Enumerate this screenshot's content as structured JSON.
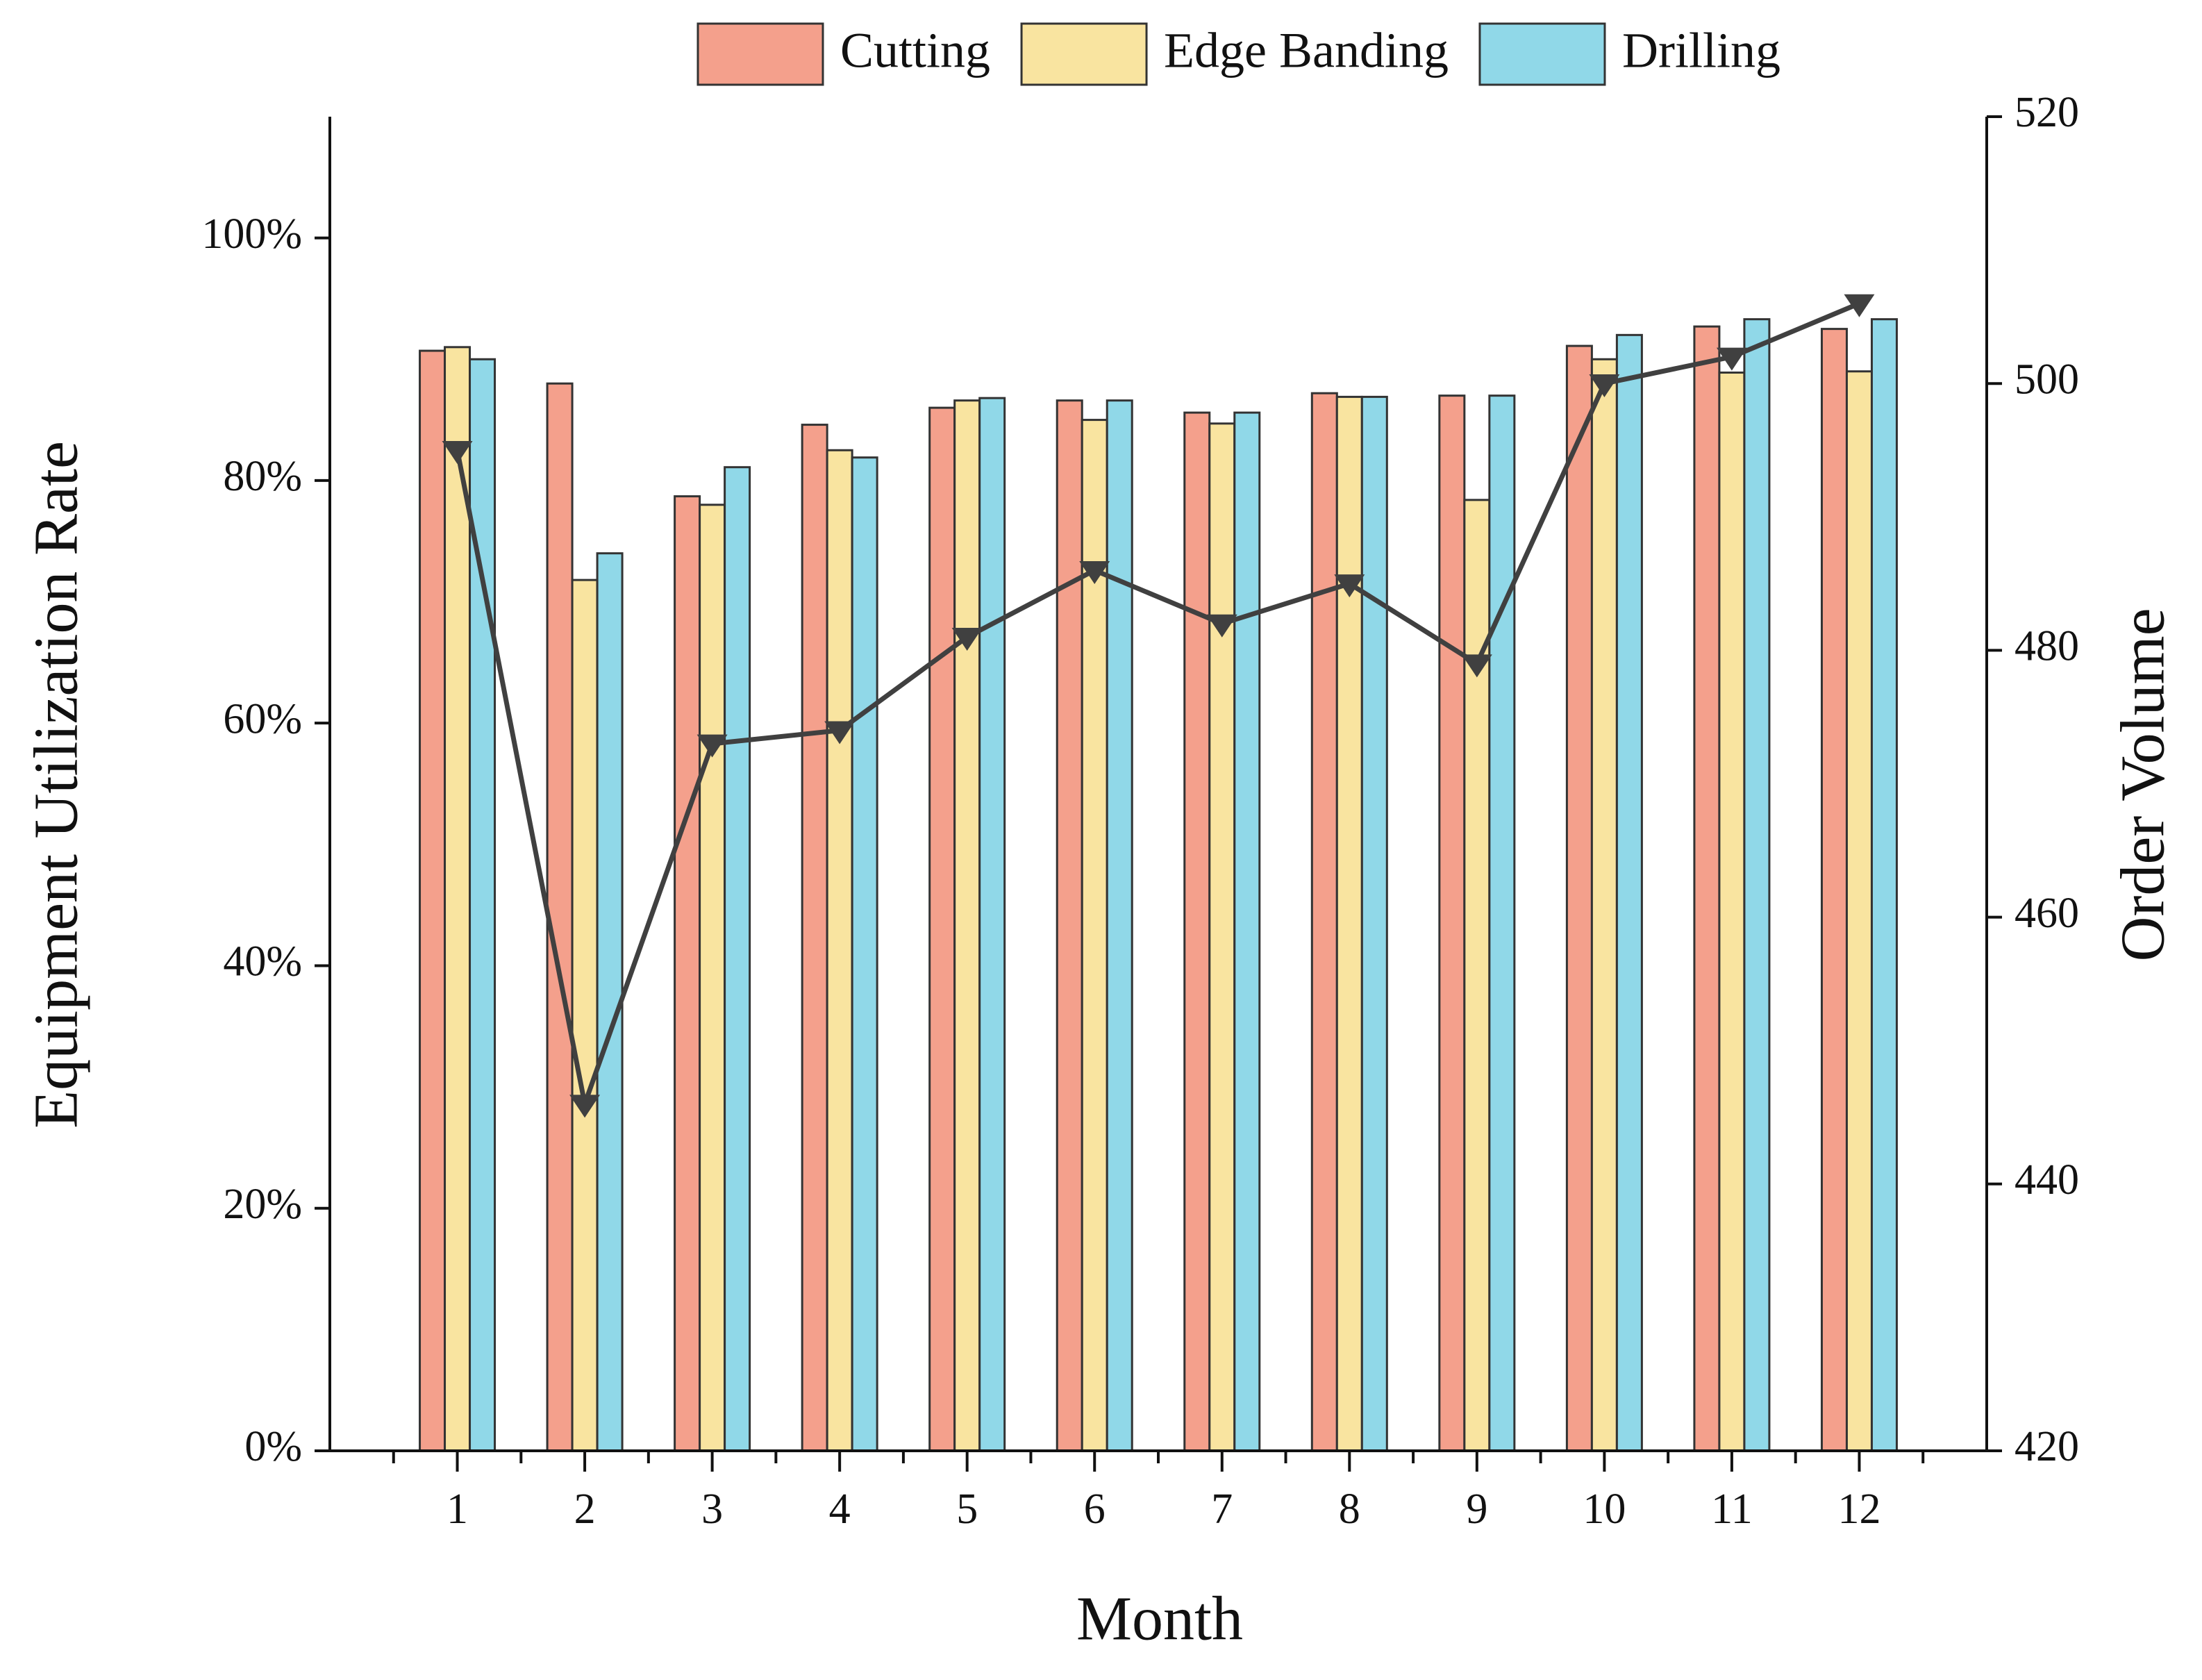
{
  "chart_data": {
    "type": "bar",
    "xlabel": "Month",
    "ylabel": "Equipment Utilization Rate",
    "y2label": "Order Volume",
    "categories": [
      1,
      2,
      3,
      4,
      5,
      6,
      7,
      8,
      9,
      10,
      11,
      12
    ],
    "series": [
      {
        "name": "Cutting",
        "color": "#f4a08c",
        "values": [
          90.7,
          88.0,
          78.7,
          84.6,
          86.0,
          86.6,
          85.6,
          87.2,
          87.0,
          91.1,
          92.7,
          92.5
        ]
      },
      {
        "name": "Edge Banding",
        "color": "#f9e4a0",
        "values": [
          91.0,
          71.8,
          78.0,
          82.5,
          86.6,
          85.0,
          84.7,
          86.9,
          78.4,
          90.0,
          88.9,
          89.0
        ]
      },
      {
        "name": "Drilling",
        "color": "#90d8e8",
        "values": [
          90.0,
          74.0,
          81.1,
          81.9,
          86.8,
          86.6,
          85.6,
          86.9,
          87.0,
          92.0,
          93.3,
          93.3
        ]
      },
      {
        "type": "line",
        "axis": "y2",
        "color": "#404040",
        "values": [
          495,
          446,
          473,
          474,
          481,
          486,
          482,
          485,
          479,
          500,
          502,
          506
        ]
      }
    ],
    "ylim": [
      0,
      110
    ],
    "yticks": [
      {
        "value": 0,
        "label": "0%"
      },
      {
        "value": 20,
        "label": "20%"
      },
      {
        "value": 40,
        "label": "40%"
      },
      {
        "value": 60,
        "label": "60%"
      },
      {
        "value": 80,
        "label": "80%"
      },
      {
        "value": 100,
        "label": "100%"
      }
    ],
    "y2lim": [
      420,
      520
    ],
    "y2ticks": [
      420,
      440,
      460,
      480,
      500,
      520
    ],
    "legend": "top"
  }
}
